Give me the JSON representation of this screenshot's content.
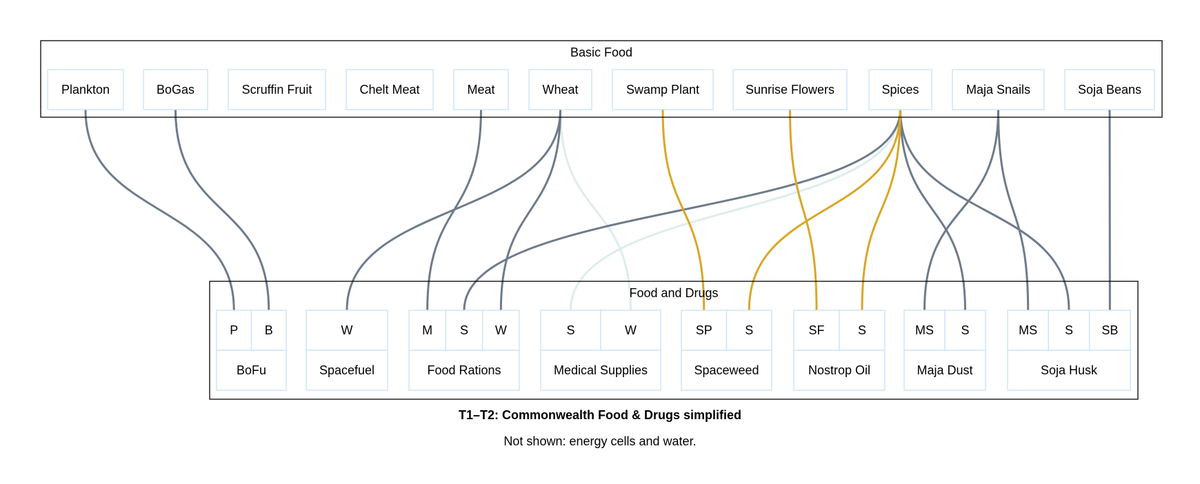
{
  "title": "T1–T2: Commonwealth Food & Drugs simplified",
  "subtitle": "Not shown: energy cells and water.",
  "colors": {
    "default": "#6d7b8b",
    "highlight": "#daa626",
    "faint": "#deecec",
    "node_border": "#c6e2fb"
  },
  "top_cluster": {
    "label": "Basic Food",
    "nodes": [
      {
        "id": "plankton",
        "label": "Plankton"
      },
      {
        "id": "bogas",
        "label": "BoGas"
      },
      {
        "id": "scruffin",
        "label": "Scruffin Fruit"
      },
      {
        "id": "chelt",
        "label": "Chelt Meat"
      },
      {
        "id": "meat",
        "label": "Meat"
      },
      {
        "id": "wheat",
        "label": "Wheat"
      },
      {
        "id": "swamp",
        "label": "Swamp Plant"
      },
      {
        "id": "sunrise",
        "label": "Sunrise Flowers"
      },
      {
        "id": "spices",
        "label": "Spices"
      },
      {
        "id": "majasnails",
        "label": "Maja Snails"
      },
      {
        "id": "sojabeans",
        "label": "Soja Beans"
      }
    ]
  },
  "bottom_cluster": {
    "label": "Food and Drugs",
    "products": [
      {
        "id": "bofu",
        "label": "BoFu",
        "inputs": [
          {
            "id": "bofu_p",
            "label": "P"
          },
          {
            "id": "bofu_b",
            "label": "B"
          }
        ]
      },
      {
        "id": "spacefuel",
        "label": "Spacefuel",
        "inputs": [
          {
            "id": "spacefuel_w",
            "label": "W"
          }
        ]
      },
      {
        "id": "foodrations",
        "label": "Food Rations",
        "inputs": [
          {
            "id": "fr_m",
            "label": "M"
          },
          {
            "id": "fr_s",
            "label": "S"
          },
          {
            "id": "fr_w",
            "label": "W"
          }
        ]
      },
      {
        "id": "medical",
        "label": "Medical Supplies",
        "inputs": [
          {
            "id": "med_s",
            "label": "S"
          },
          {
            "id": "med_w",
            "label": "W"
          }
        ]
      },
      {
        "id": "spaceweed",
        "label": "Spaceweed",
        "inputs": [
          {
            "id": "sw_sp",
            "label": "SP"
          },
          {
            "id": "sw_s",
            "label": "S"
          }
        ]
      },
      {
        "id": "nostrop",
        "label": "Nostrop Oil",
        "inputs": [
          {
            "id": "no_sf",
            "label": "SF"
          },
          {
            "id": "no_s",
            "label": "S"
          }
        ]
      },
      {
        "id": "majadust",
        "label": "Maja Dust",
        "inputs": [
          {
            "id": "md_ms",
            "label": "MS"
          },
          {
            "id": "md_s",
            "label": "S"
          }
        ]
      },
      {
        "id": "sojahusk",
        "label": "Soja Husk",
        "inputs": [
          {
            "id": "sh_ms",
            "label": "MS"
          },
          {
            "id": "sh_s",
            "label": "S"
          },
          {
            "id": "sh_sb",
            "label": "SB"
          }
        ]
      }
    ]
  },
  "edges": [
    {
      "from": "plankton",
      "to": "bofu_p",
      "style": "default"
    },
    {
      "from": "bogas",
      "to": "bofu_b",
      "style": "default"
    },
    {
      "from": "meat",
      "to": "fr_m",
      "style": "default"
    },
    {
      "from": "wheat",
      "to": "spacefuel_w",
      "style": "default"
    },
    {
      "from": "wheat",
      "to": "fr_w",
      "style": "default"
    },
    {
      "from": "wheat",
      "to": "med_w",
      "style": "faint"
    },
    {
      "from": "swamp",
      "to": "sw_sp",
      "style": "highlight"
    },
    {
      "from": "sunrise",
      "to": "no_sf",
      "style": "highlight"
    },
    {
      "from": "spices",
      "to": "fr_s",
      "style": "default"
    },
    {
      "from": "spices",
      "to": "med_s",
      "style": "faint"
    },
    {
      "from": "spices",
      "to": "sw_s",
      "style": "highlight"
    },
    {
      "from": "spices",
      "to": "no_s",
      "style": "highlight"
    },
    {
      "from": "spices",
      "to": "md_s",
      "style": "default"
    },
    {
      "from": "spices",
      "to": "sh_s",
      "style": "default"
    },
    {
      "from": "majasnails",
      "to": "md_ms",
      "style": "default"
    },
    {
      "from": "majasnails",
      "to": "sh_ms",
      "style": "default"
    },
    {
      "from": "sojabeans",
      "to": "sh_sb",
      "style": "default"
    }
  ]
}
